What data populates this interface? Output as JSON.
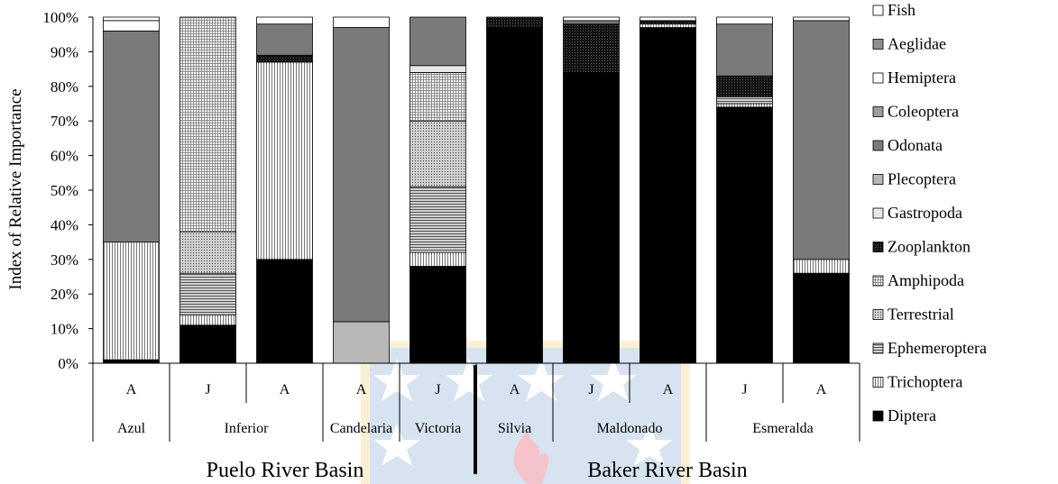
{
  "chart_data": {
    "type": "bar",
    "stacked": true,
    "ylabel": "Index of Relative Importance",
    "ylim": [
      0,
      100
    ],
    "yticks": [
      "0%",
      "10%",
      "20%",
      "30%",
      "40%",
      "50%",
      "60%",
      "70%",
      "80%",
      "90%",
      "100%"
    ],
    "categories": [
      {
        "season": "A",
        "site": "Azul"
      },
      {
        "season": "J",
        "site": "Inferior"
      },
      {
        "season": "A",
        "site": "Inferior"
      },
      {
        "season": "A",
        "site": "Candelaria"
      },
      {
        "season": "J",
        "site": "Victoria"
      },
      {
        "season": "A",
        "site": "Silvia"
      },
      {
        "season": "J",
        "site": "Maldonado"
      },
      {
        "season": "A",
        "site": "Maldonado"
      },
      {
        "season": "J",
        "site": "Esmeralda"
      },
      {
        "season": "A",
        "site": "Esmeralda"
      }
    ],
    "sites": [
      "Azul",
      "Inferior",
      "Candelaria",
      "Victoria",
      "Silvia",
      "Maldonado",
      "Esmeralda"
    ],
    "basins": [
      "Puelo River Basin",
      "Baker River Basin"
    ],
    "series": [
      {
        "name": "Diptera",
        "color": "#000000",
        "values": [
          1,
          11,
          30,
          0,
          28,
          97,
          84,
          97,
          74,
          26
        ]
      },
      {
        "name": "Trichoptera",
        "color": "#bdbdbd",
        "values": [
          34,
          3,
          57,
          0,
          4,
          0,
          0,
          1,
          1,
          4
        ]
      },
      {
        "name": "Ephemeroptera",
        "color": "#6e6e6e",
        "values": [
          0,
          12,
          0,
          0,
          19,
          0,
          0,
          0,
          2,
          0
        ]
      },
      {
        "name": "Terrestrial",
        "color": "#a8a8a8",
        "values": [
          0,
          12,
          0,
          0,
          19,
          0,
          0,
          0,
          0,
          0
        ]
      },
      {
        "name": "Amphipoda",
        "color": "#d9d9d9",
        "values": [
          0,
          62,
          0,
          0,
          14,
          0,
          0,
          0,
          0,
          0
        ]
      },
      {
        "name": "Zooplankton",
        "color": "#1a1a1a",
        "values": [
          0,
          0,
          2,
          0,
          0,
          3,
          14,
          1,
          6,
          0
        ]
      },
      {
        "name": "Gastropoda",
        "color": "#e8e8e8",
        "values": [
          0,
          0,
          0,
          0,
          2,
          0,
          0,
          0,
          0,
          0
        ]
      },
      {
        "name": "Plecoptera",
        "color": "#b8b8b8",
        "values": [
          0,
          0,
          0,
          12,
          0,
          0,
          0,
          0,
          0,
          0
        ]
      },
      {
        "name": "Odonata",
        "color": "#7a7a7a",
        "values": [
          61,
          0,
          9,
          85,
          14,
          0,
          1,
          0,
          15,
          69
        ]
      },
      {
        "name": "Coleoptera",
        "color": "#9c9c9c",
        "values": [
          0,
          0,
          0,
          0,
          0,
          0,
          0,
          0,
          0,
          0
        ]
      },
      {
        "name": "Hemiptera",
        "color": "#ffffff",
        "values": [
          3,
          0,
          2,
          3,
          0,
          0,
          1,
          1,
          0,
          0
        ]
      },
      {
        "name": "Aeglidae",
        "color": "#8f8f8f",
        "values": [
          0,
          0,
          0,
          0,
          0,
          0,
          0,
          0,
          0,
          0
        ]
      },
      {
        "name": "Fish",
        "color": "#ffffff",
        "values": [
          1,
          0,
          0,
          0,
          0,
          0,
          0,
          0,
          2,
          1
        ]
      }
    ]
  }
}
